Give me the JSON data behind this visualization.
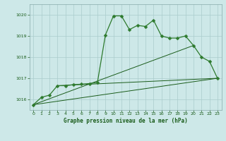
{
  "title": "Graphe pression niveau de la mer (hPa)",
  "background_color": "#cde8e8",
  "grid_color": "#aacccc",
  "line_color_dark": "#1a5c1a",
  "line_color_med": "#2d7a2d",
  "xlim": [
    -0.5,
    23.5
  ],
  "ylim": [
    1015.5,
    1020.5
  ],
  "yticks": [
    1016,
    1017,
    1018,
    1019,
    1020
  ],
  "xticks": [
    0,
    1,
    2,
    3,
    4,
    5,
    6,
    7,
    8,
    9,
    10,
    11,
    12,
    13,
    14,
    15,
    16,
    17,
    18,
    19,
    20,
    21,
    22,
    23
  ],
  "series1_x": [
    0,
    1,
    2,
    3,
    4,
    5,
    6,
    7,
    8,
    9,
    10,
    11,
    12,
    13,
    14,
    15,
    16,
    17,
    18,
    19,
    20,
    21,
    22,
    23
  ],
  "series1_y": [
    1015.75,
    1016.1,
    1016.2,
    1016.65,
    1016.65,
    1016.7,
    1016.72,
    1016.75,
    1016.8,
    1019.05,
    1019.95,
    1019.95,
    1019.3,
    1019.5,
    1019.45,
    1019.75,
    1019.0,
    1018.9,
    1018.9,
    1019.0,
    1018.55,
    1018.0,
    1017.8,
    1017.0
  ],
  "line2_x": [
    0,
    23
  ],
  "line2_y": [
    1015.75,
    1017.0
  ],
  "line3_x": [
    0,
    20
  ],
  "line3_y": [
    1015.75,
    1018.55
  ],
  "line4_x": [
    3,
    23
  ],
  "line4_y": [
    1016.65,
    1017.0
  ],
  "markersize": 2.5,
  "linewidth_main": 0.9,
  "linewidth_thin": 0.7
}
